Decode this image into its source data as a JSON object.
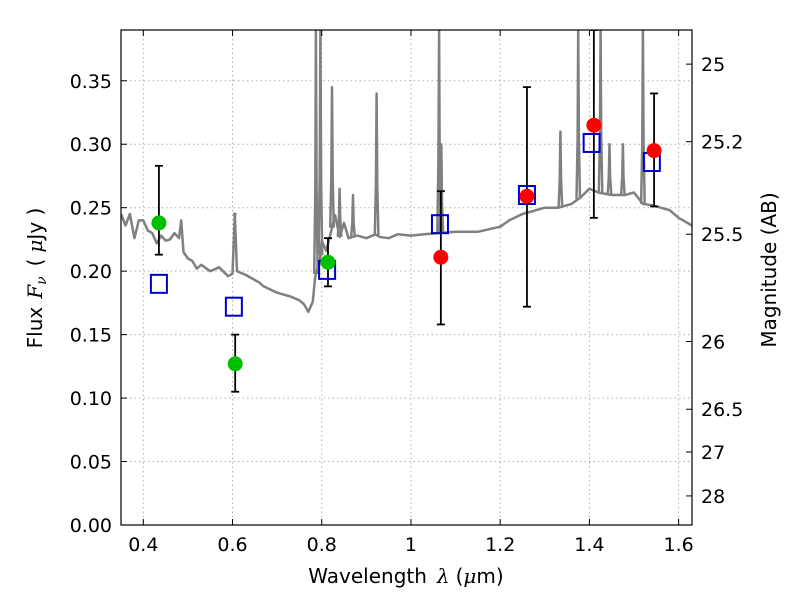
{
  "chart_data": {
    "type": "scatter",
    "xlabel_prefix": "Wavelength",
    "xlabel_symbol": "λ",
    "xlabel_unit_open": "(",
    "xlabel_unit_mu": "μ",
    "xlabel_unit_rest": "m)",
    "ylabel_prefix": "Flux",
    "ylabel_symbol": "F",
    "ylabel_subscript": "ν",
    "ylabel_unit_open": "(",
    "ylabel_unit_mu": "μ",
    "ylabel_unit_rest": "Jy )",
    "y2label": "Magnitude (AB)",
    "xlim": [
      0.35,
      1.63
    ],
    "ylim": [
      0.0,
      0.39
    ],
    "x_ticks": [
      {
        "value": 0.4,
        "label": "0.4"
      },
      {
        "value": 0.6,
        "label": "0.6"
      },
      {
        "value": 0.8,
        "label": "0.8"
      },
      {
        "value": 1.0,
        "label": "1"
      },
      {
        "value": 1.2,
        "label": "1.2"
      },
      {
        "value": 1.4,
        "label": "1.4"
      },
      {
        "value": 1.6,
        "label": "1.6"
      }
    ],
    "y_ticks": [
      {
        "value": 0.0,
        "label": "0.00"
      },
      {
        "value": 0.05,
        "label": "0.05"
      },
      {
        "value": 0.1,
        "label": "0.10"
      },
      {
        "value": 0.15,
        "label": "0.15"
      },
      {
        "value": 0.2,
        "label": "0.20"
      },
      {
        "value": 0.25,
        "label": "0.25"
      },
      {
        "value": 0.3,
        "label": "0.30"
      },
      {
        "value": 0.35,
        "label": "0.35"
      }
    ],
    "mag_ticks": [
      {
        "value": 25,
        "label": "25"
      },
      {
        "value": 25.2,
        "label": "25.2"
      },
      {
        "value": 25.5,
        "label": "25.5"
      },
      {
        "value": 26,
        "label": "26"
      },
      {
        "value": 26.5,
        "label": "26.5"
      },
      {
        "value": 27,
        "label": "27"
      },
      {
        "value": 28,
        "label": "28"
      }
    ],
    "grid": true,
    "colors": {
      "model": "#808080",
      "green": "#00c000",
      "red": "#ff0000",
      "square": "#0000cc",
      "errorbar": "#000000",
      "grid": "#b0b0b0"
    },
    "model_spectrum": {
      "name": "model spectrum",
      "x": [
        0.35,
        0.36,
        0.37,
        0.38,
        0.39,
        0.4,
        0.41,
        0.42,
        0.43,
        0.44,
        0.45,
        0.46,
        0.47,
        0.48,
        0.485,
        0.49,
        0.5,
        0.51,
        0.52,
        0.53,
        0.55,
        0.57,
        0.59,
        0.6,
        0.605,
        0.61,
        0.63,
        0.65,
        0.66,
        0.67,
        0.7,
        0.73,
        0.75,
        0.76,
        0.77,
        0.78,
        0.785,
        0.79,
        0.795,
        0.8,
        0.81,
        0.82,
        0.83,
        0.84,
        0.85,
        0.86,
        0.88,
        0.9,
        0.92,
        0.93,
        0.95,
        0.97,
        1.0,
        1.03,
        1.06,
        1.1,
        1.15,
        1.2,
        1.22,
        1.25,
        1.28,
        1.3,
        1.33,
        1.36,
        1.38,
        1.4,
        1.42,
        1.45,
        1.48,
        1.5,
        1.52,
        1.54,
        1.56,
        1.58,
        1.6,
        1.63
      ],
      "y": [
        0.245,
        0.236,
        0.245,
        0.226,
        0.24,
        0.24,
        0.232,
        0.23,
        0.222,
        0.228,
        0.224,
        0.225,
        0.23,
        0.226,
        0.24,
        0.215,
        0.21,
        0.208,
        0.202,
        0.205,
        0.2,
        0.203,
        0.196,
        0.198,
        0.245,
        0.2,
        0.197,
        0.193,
        0.191,
        0.188,
        0.183,
        0.18,
        0.177,
        0.174,
        0.168,
        0.176,
        0.195,
        0.202,
        0.205,
        0.224,
        0.216,
        0.23,
        0.244,
        0.227,
        0.238,
        0.226,
        0.228,
        0.226,
        0.229,
        0.227,
        0.226,
        0.229,
        0.228,
        0.229,
        0.23,
        0.231,
        0.231,
        0.235,
        0.24,
        0.245,
        0.248,
        0.25,
        0.25,
        0.253,
        0.258,
        0.265,
        0.262,
        0.26,
        0.26,
        0.262,
        0.253,
        0.252,
        0.25,
        0.248,
        0.242,
        0.236
      ]
    },
    "model_spikes": [
      {
        "x": 0.605,
        "peak": 0.245
      },
      {
        "x": 0.787,
        "peak": 0.39
      },
      {
        "x": 0.797,
        "peak": 0.39
      },
      {
        "x": 0.823,
        "peak": 0.345
      },
      {
        "x": 0.84,
        "peak": 0.265
      },
      {
        "x": 0.87,
        "peak": 0.26
      },
      {
        "x": 0.923,
        "peak": 0.34
      },
      {
        "x": 1.063,
        "peak": 0.39
      },
      {
        "x": 1.068,
        "peak": 0.3
      },
      {
        "x": 1.335,
        "peak": 0.31
      },
      {
        "x": 1.375,
        "peak": 0.39
      },
      {
        "x": 1.425,
        "peak": 0.39
      },
      {
        "x": 1.445,
        "peak": 0.3
      },
      {
        "x": 1.475,
        "peak": 0.3
      },
      {
        "x": 1.52,
        "peak": 0.39
      }
    ],
    "photometry_green": {
      "name": "green photometry",
      "points": [
        {
          "x": 0.435,
          "y": 0.238,
          "yerr_low": 0.213,
          "yerr_high": 0.283
        },
        {
          "x": 0.606,
          "y": 0.127,
          "yerr_low": 0.105,
          "yerr_high": 0.15
        },
        {
          "x": 0.814,
          "y": 0.207,
          "yerr_low": 0.188,
          "yerr_high": 0.226
        }
      ]
    },
    "photometry_red": {
      "name": "red photometry",
      "points": [
        {
          "x": 1.067,
          "y": 0.211,
          "yerr_low": 0.158,
          "yerr_high": 0.263
        },
        {
          "x": 1.26,
          "y": 0.259,
          "yerr_low": 0.172,
          "yerr_high": 0.345
        },
        {
          "x": 1.41,
          "y": 0.315,
          "yerr_low": 0.242,
          "yerr_high": 0.39
        },
        {
          "x": 1.545,
          "y": 0.295,
          "yerr_low": 0.251,
          "yerr_high": 0.34
        }
      ]
    },
    "model_photometry_squares": {
      "name": "model synthetic photometry",
      "points": [
        {
          "x": 0.435,
          "y": 0.19
        },
        {
          "x": 0.603,
          "y": 0.172
        },
        {
          "x": 0.812,
          "y": 0.201
        },
        {
          "x": 1.065,
          "y": 0.237
        },
        {
          "x": 1.26,
          "y": 0.26
        },
        {
          "x": 1.405,
          "y": 0.301
        },
        {
          "x": 1.54,
          "y": 0.286
        }
      ]
    }
  }
}
